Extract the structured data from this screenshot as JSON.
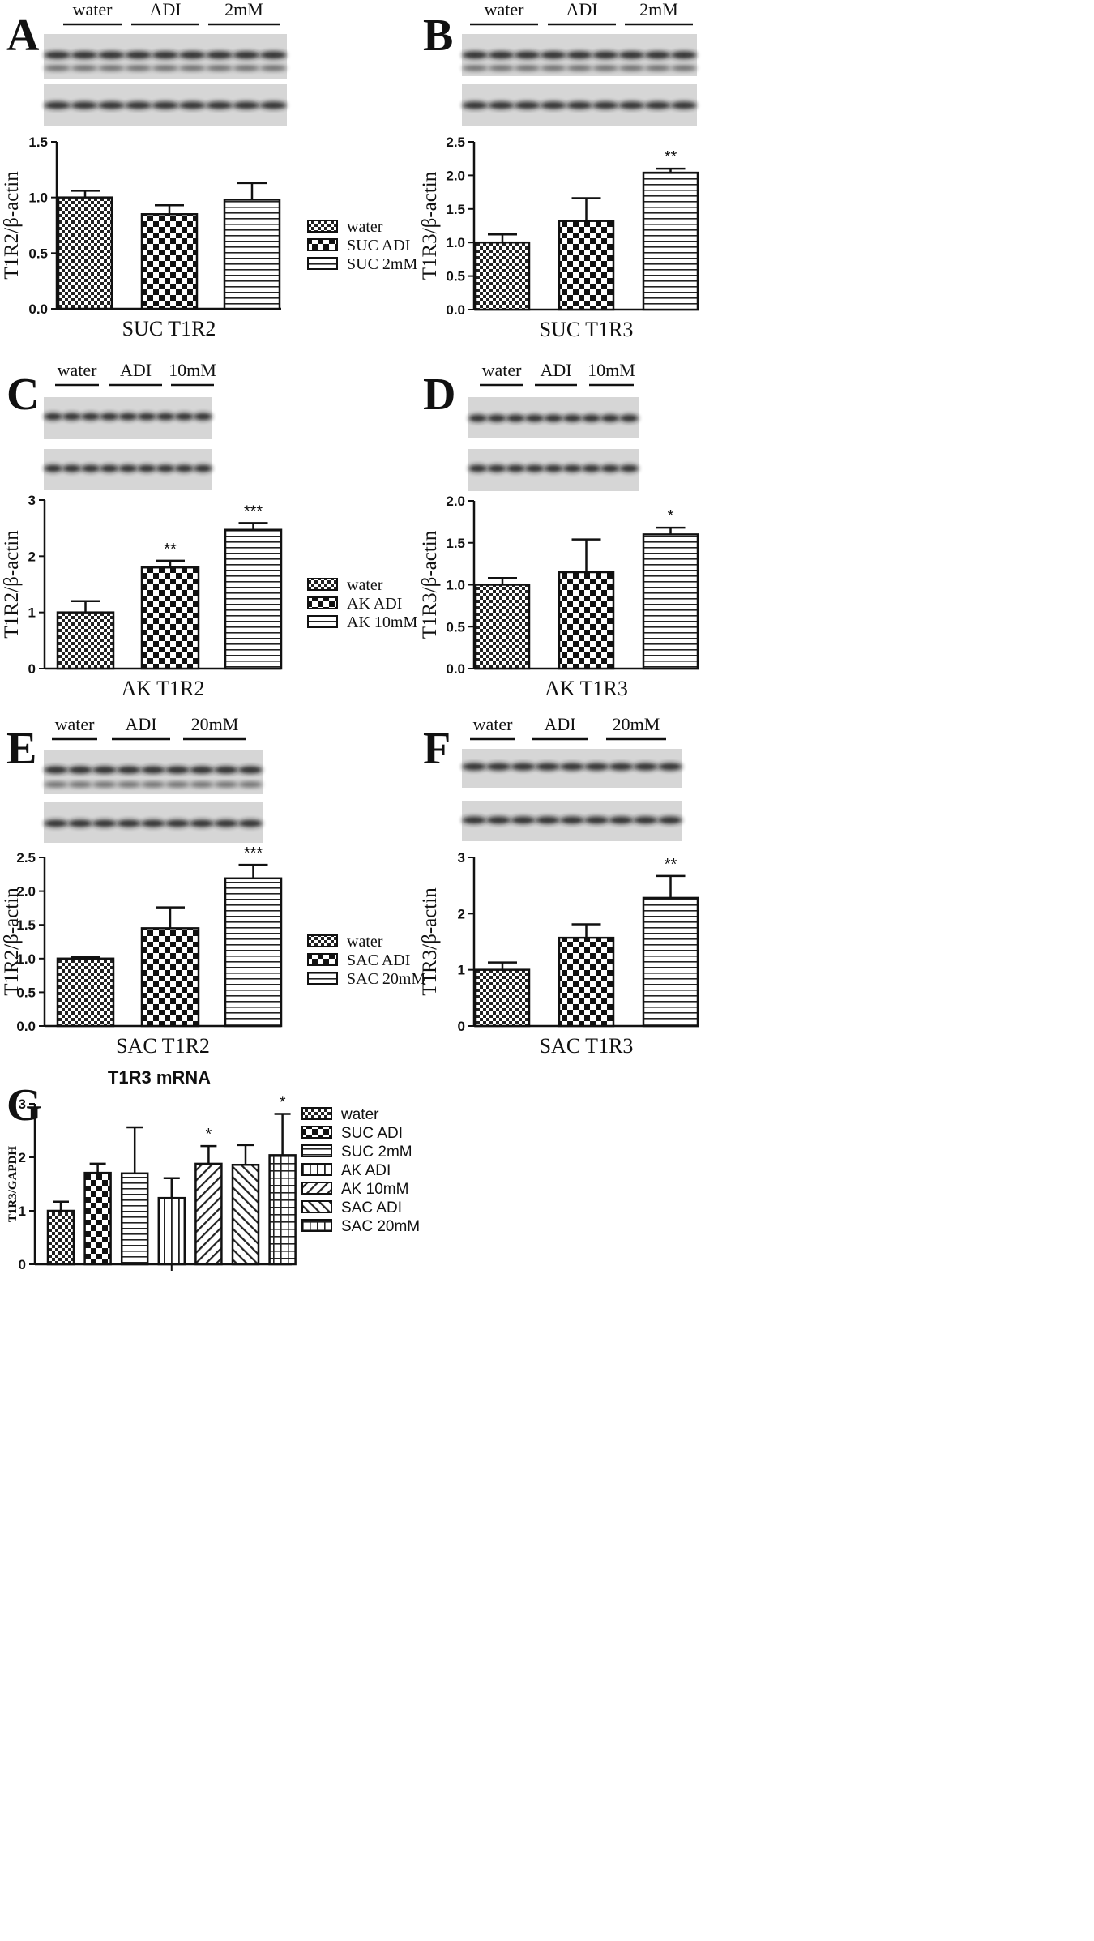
{
  "panels": [
    {
      "letter": "A",
      "lanes": [
        "water",
        "ADI",
        "2mM"
      ]
    },
    {
      "letter": "B",
      "lanes": [
        "water",
        "ADI",
        "2mM"
      ]
    },
    {
      "letter": "C",
      "lanes": [
        "water",
        "ADI",
        "10mM"
      ]
    },
    {
      "letter": "D",
      "lanes": [
        "water",
        "ADI",
        "10mM"
      ]
    },
    {
      "letter": "E",
      "lanes": [
        "water",
        "ADI",
        "20mM"
      ]
    },
    {
      "letter": "F",
      "lanes": [
        "water",
        "ADI",
        "20mM"
      ]
    },
    {
      "letter": "G",
      "lanes": []
    }
  ],
  "chart_data": [
    {
      "type": "bar",
      "panel": "A",
      "title": "",
      "xlabel": "SUC T1R2",
      "ylabel": "T1R2/β-actin",
      "categories": [
        "water",
        "SUC ADI",
        "SUC 2mM"
      ],
      "values": [
        1.0,
        0.85,
        0.98
      ],
      "errors": [
        0.06,
        0.08,
        0.15
      ],
      "significance": [
        "",
        "",
        ""
      ],
      "ylim": [
        0,
        1.5
      ],
      "yticks": [
        "0.0",
        "0.5",
        "1.0",
        "1.5"
      ],
      "legend": [
        "water",
        "SUC ADI",
        "SUC 2mM"
      ],
      "patterns": [
        "checker",
        "checker-large",
        "hlines"
      ],
      "grid": false
    },
    {
      "type": "bar",
      "panel": "B",
      "title": "",
      "xlabel": "SUC T1R3",
      "ylabel": "T1R3/β-actin",
      "categories": [
        "water",
        "SUC ADI",
        "SUC 2mM"
      ],
      "values": [
        1.0,
        1.32,
        2.04
      ],
      "errors": [
        0.12,
        0.34,
        0.06
      ],
      "significance": [
        "",
        "",
        "**"
      ],
      "ylim": [
        0,
        2.5
      ],
      "yticks": [
        "0.0",
        "0.5",
        "1.0",
        "1.5",
        "2.0",
        "2.5"
      ],
      "patterns": [
        "checker",
        "checker-large",
        "hlines"
      ],
      "grid": false
    },
    {
      "type": "bar",
      "panel": "C",
      "title": "",
      "xlabel": "AK T1R2",
      "ylabel": "T1R2/β-actin",
      "categories": [
        "water",
        "AK ADI",
        "AK 10mM"
      ],
      "values": [
        1.0,
        1.8,
        2.47
      ],
      "errors": [
        0.2,
        0.12,
        0.12
      ],
      "significance": [
        "",
        "**",
        "***"
      ],
      "ylim": [
        0,
        3
      ],
      "yticks": [
        "0",
        "1",
        "2",
        "3"
      ],
      "legend": [
        "water",
        "AK ADI",
        "AK 10mM"
      ],
      "patterns": [
        "checker",
        "checker-large",
        "hlines"
      ],
      "grid": false
    },
    {
      "type": "bar",
      "panel": "D",
      "title": "",
      "xlabel": "AK T1R3",
      "ylabel": "T1R3/β-actin",
      "categories": [
        "water",
        "AK ADI",
        "AK 10mM"
      ],
      "values": [
        1.0,
        1.15,
        1.6
      ],
      "errors": [
        0.08,
        0.39,
        0.08
      ],
      "significance": [
        "",
        "",
        "*"
      ],
      "ylim": [
        0,
        2.0
      ],
      "yticks": [
        "0.0",
        "0.5",
        "1.0",
        "1.5",
        "2.0"
      ],
      "patterns": [
        "checker",
        "checker-large",
        "hlines"
      ],
      "grid": false
    },
    {
      "type": "bar",
      "panel": "E",
      "title": "",
      "xlabel": "SAC T1R2",
      "ylabel": "T1R2/β-actin",
      "categories": [
        "water",
        "SAC ADI",
        "SAC 20mM"
      ],
      "values": [
        1.0,
        1.45,
        2.19
      ],
      "errors": [
        0.02,
        0.31,
        0.2
      ],
      "significance": [
        "",
        "",
        "***"
      ],
      "ylim": [
        0,
        2.5
      ],
      "yticks": [
        "0.0",
        "0.5",
        "1.0",
        "1.5",
        "2.0",
        "2.5"
      ],
      "legend": [
        "water",
        "SAC ADI",
        "SAC 20mM"
      ],
      "patterns": [
        "checker",
        "checker-large",
        "hlines"
      ],
      "grid": false
    },
    {
      "type": "bar",
      "panel": "F",
      "title": "",
      "xlabel": "SAC T1R3",
      "ylabel": "T1R3/β-actin",
      "categories": [
        "water",
        "SAC ADI",
        "SAC 20mM"
      ],
      "values": [
        1.0,
        1.57,
        2.28
      ],
      "errors": [
        0.13,
        0.24,
        0.39
      ],
      "significance": [
        "",
        "",
        "**"
      ],
      "ylim": [
        0,
        3
      ],
      "yticks": [
        "0",
        "1",
        "2",
        "3"
      ],
      "patterns": [
        "checker",
        "checker-large",
        "hlines"
      ],
      "grid": false
    },
    {
      "type": "bar",
      "panel": "G",
      "title": "T1R3 mRNA",
      "xlabel": "",
      "ylabel": "T1R3/GAPDH",
      "categories": [
        "water",
        "SUC ADI",
        "SUC 2mM",
        "AK ADI",
        "AK 10mM",
        "SAC ADI",
        "SAC 20mM"
      ],
      "values": [
        1.0,
        1.71,
        1.7,
        1.24,
        1.88,
        1.86,
        2.04
      ],
      "errors": [
        0.17,
        0.17,
        0.86,
        0.37,
        0.33,
        0.37,
        0.77
      ],
      "significance": [
        "",
        "",
        "",
        "",
        "*",
        "",
        "*"
      ],
      "ylim": [
        0,
        3
      ],
      "yticks": [
        "0",
        "1",
        "2",
        "3"
      ],
      "legend": [
        "water",
        "SUC ADI",
        "SUC 2mM",
        "AK ADI",
        "AK 10mM",
        "SAC ADI",
        "SAC 20mM"
      ],
      "patterns": [
        "checker",
        "checker-large",
        "hlines",
        "vlines",
        "diag-right",
        "diag-left",
        "grid"
      ],
      "grid": false
    }
  ]
}
